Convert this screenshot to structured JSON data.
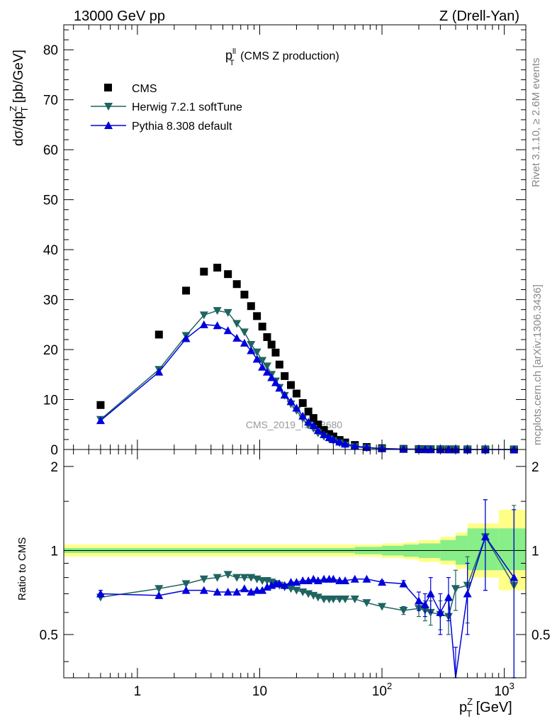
{
  "header": {
    "left": "13000 GeV pp",
    "right": "Z (Drell-Yan)"
  },
  "side_texts": {
    "rivet": "Rivet 3.1.10, ≥ 2.6M events",
    "mcplots": "mcplots.cern.ch [arXiv:1306.3436]"
  },
  "watermark": "CMS_2019_I1753680",
  "colors": {
    "cms": "#000000",
    "herwig": "#1f6460",
    "pythia": "#0000dd",
    "band_outer": "#ffff88",
    "band_inner": "#88ee88"
  },
  "chart_data": [
    {
      "type": "scatter",
      "panel": "main",
      "title": "p_T^ll (CMS Z production)",
      "title_parts": {
        "main": "p",
        "sup": "ll",
        "sub": "T",
        "rest": " (CMS Z production)"
      },
      "ylabel": "dσ/dp_T^Z [pb/GeV]",
      "ylabel_parts": {
        "pre": "dσ/dp",
        "sup": "Z",
        "sub": "T",
        "post": " [pb/GeV]"
      },
      "xscale": "log",
      "xlim": [
        0.25,
        1500
      ],
      "ylim": [
        0,
        85
      ],
      "yticks": [
        0,
        10,
        20,
        30,
        40,
        50,
        60,
        70,
        80
      ],
      "legend_position": "top-left",
      "series": [
        {
          "name": "CMS",
          "marker": "square",
          "x": [
            0.5,
            1.5,
            2.5,
            3.5,
            4.5,
            5.5,
            6.5,
            7.5,
            8.5,
            9.5,
            10.5,
            11.5,
            12.5,
            13.5,
            14.5,
            16,
            18,
            20,
            22.5,
            25,
            27.5,
            30,
            33.5,
            37,
            40,
            45,
            50,
            60,
            75,
            100,
            150,
            200,
            225,
            250,
            300,
            350,
            400,
            500,
            700,
            1200
          ],
          "y": [
            8.9,
            23.0,
            31.8,
            35.6,
            36.4,
            35.1,
            33.1,
            31.0,
            28.7,
            26.7,
            24.6,
            22.5,
            21.0,
            19.4,
            17.0,
            14.7,
            12.9,
            11.2,
            9.3,
            7.6,
            6.3,
            5.0,
            3.9,
            3.1,
            2.6,
            1.9,
            1.4,
            0.9,
            0.5,
            0.25,
            0.12,
            0.06,
            0.05,
            0.04,
            0.03,
            0.02,
            0.015,
            0.008,
            0.004,
            0.001
          ]
        },
        {
          "name": "Herwig 7.2.1 softTune",
          "marker": "triangle-down",
          "x": [
            0.5,
            1.5,
            2.5,
            3.5,
            4.5,
            5.5,
            6.5,
            7.5,
            8.5,
            9.5,
            10.5,
            11.5,
            12.5,
            13.5,
            14.5,
            16,
            18,
            20,
            22.5,
            25,
            27.5,
            30,
            33.5,
            37,
            40,
            45,
            50,
            60,
            75,
            100,
            150,
            200,
            225,
            250,
            300,
            350,
            400,
            500,
            700,
            1200
          ],
          "y": [
            6.0,
            16.0,
            22.8,
            26.9,
            27.8,
            27.4,
            25.2,
            23.5,
            21.0,
            19.5,
            17.8,
            16.7,
            15.0,
            13.7,
            12.4,
            10.8,
            9.1,
            7.8,
            6.2,
            4.9,
            4.2,
            3.3,
            2.6,
            2.1,
            1.7,
            1.3,
            0.9,
            0.55,
            0.32,
            0.16,
            0.08,
            0.04,
            0.03,
            0.02,
            0.015,
            0.01,
            0.008,
            0.005,
            0.003,
            0.001
          ]
        },
        {
          "name": "Pythia 8.308 default",
          "marker": "triangle-up",
          "x": [
            0.5,
            1.5,
            2.5,
            3.5,
            4.5,
            5.5,
            6.5,
            7.5,
            8.5,
            9.5,
            10.5,
            11.5,
            12.5,
            13.5,
            14.5,
            16,
            18,
            20,
            22.5,
            25,
            27.5,
            30,
            33.5,
            37,
            40,
            45,
            50,
            60,
            75,
            100,
            150,
            200,
            225,
            250,
            300,
            350,
            400,
            500,
            700,
            1200
          ],
          "y": [
            5.8,
            15.5,
            22.2,
            25.0,
            24.8,
            23.8,
            22.3,
            21.3,
            19.8,
            18.1,
            16.5,
            15.5,
            14.4,
            13.4,
            12.3,
            10.9,
            9.6,
            8.3,
            6.7,
            5.5,
            4.8,
            3.8,
            3.0,
            2.4,
            2.0,
            1.5,
            1.1,
            0.7,
            0.4,
            0.2,
            0.09,
            0.045,
            0.04,
            0.03,
            0.02,
            0.013,
            0.008,
            0.004,
            0.003,
            0.001
          ]
        }
      ]
    },
    {
      "type": "line",
      "panel": "ratio",
      "ylabel": "Ratio to CMS",
      "xlabel": "p_T^Z [GeV]",
      "xlabel_parts": {
        "pre": "p",
        "sup": "Z",
        "sub": "T",
        "post": " [GeV]"
      },
      "xscale": "log",
      "xlim": [
        0.25,
        1500
      ],
      "ylim": [
        0.35,
        2.3
      ],
      "yticks": [
        0.5,
        1,
        2
      ],
      "xticks": [
        1,
        10,
        100,
        1000
      ],
      "xtick_labels": [
        {
          "base": "1",
          "exp": ""
        },
        {
          "base": "10",
          "exp": ""
        },
        {
          "base": "10",
          "exp": "2"
        },
        {
          "base": "10",
          "exp": "3"
        }
      ],
      "band_edges": [
        0.25,
        60,
        100,
        150,
        200,
        300,
        400,
        500,
        900,
        1500
      ],
      "band_outer": [
        [
          0.95,
          1.05
        ],
        [
          0.95,
          1.05
        ],
        [
          0.94,
          1.06
        ],
        [
          0.93,
          1.07
        ],
        [
          0.91,
          1.09
        ],
        [
          0.89,
          1.12
        ],
        [
          0.86,
          1.16
        ],
        [
          0.8,
          1.25
        ],
        [
          0.72,
          1.4
        ]
      ],
      "band_inner": [
        [
          0.98,
          1.02
        ],
        [
          0.97,
          1.03
        ],
        [
          0.96,
          1.04
        ],
        [
          0.95,
          1.05
        ],
        [
          0.94,
          1.06
        ],
        [
          0.92,
          1.09
        ],
        [
          0.89,
          1.13
        ],
        [
          0.85,
          1.2
        ],
        [
          0.85,
          1.2
        ]
      ],
      "series": [
        {
          "name": "Herwig 7.2.1 softTune",
          "x": [
            0.5,
            1.5,
            2.5,
            3.5,
            4.5,
            5.5,
            6.5,
            7.5,
            8.5,
            9.5,
            10.5,
            11.5,
            12.5,
            13.5,
            14.5,
            16,
            18,
            20,
            22.5,
            25,
            27.5,
            30,
            33.5,
            37,
            40,
            45,
            50,
            60,
            75,
            100,
            150,
            200,
            225,
            250,
            300,
            350,
            400,
            500,
            700,
            1200
          ],
          "y": [
            0.68,
            0.73,
            0.76,
            0.79,
            0.8,
            0.82,
            0.8,
            0.8,
            0.8,
            0.79,
            0.78,
            0.78,
            0.77,
            0.76,
            0.75,
            0.74,
            0.73,
            0.72,
            0.71,
            0.7,
            0.69,
            0.68,
            0.67,
            0.67,
            0.67,
            0.67,
            0.67,
            0.67,
            0.65,
            0.63,
            0.61,
            0.62,
            0.61,
            0.6,
            0.59,
            0.58,
            0.73,
            0.75,
            1.12,
            0.75
          ],
          "yerr": [
            0,
            0,
            0,
            0,
            0,
            0,
            0,
            0,
            0,
            0,
            0,
            0,
            0,
            0,
            0,
            0,
            0,
            0,
            0,
            0,
            0,
            0,
            0,
            0,
            0,
            0,
            0,
            0,
            0,
            0,
            0.02,
            0.04,
            0.05,
            0.06,
            0.07,
            0.08,
            0.12,
            0.2,
            0.4,
            0.7
          ]
        },
        {
          "name": "Pythia 8.308 default",
          "x": [
            0.5,
            1.5,
            2.5,
            3.5,
            4.5,
            5.5,
            6.5,
            7.5,
            8.5,
            9.5,
            10.5,
            11.5,
            12.5,
            13.5,
            14.5,
            16,
            18,
            20,
            22.5,
            25,
            27.5,
            30,
            33.5,
            37,
            40,
            45,
            50,
            60,
            75,
            100,
            150,
            200,
            225,
            250,
            300,
            350,
            400,
            500,
            700,
            1200
          ],
          "y": [
            0.7,
            0.69,
            0.72,
            0.72,
            0.71,
            0.71,
            0.71,
            0.73,
            0.71,
            0.72,
            0.72,
            0.74,
            0.75,
            0.76,
            0.76,
            0.75,
            0.77,
            0.77,
            0.78,
            0.78,
            0.79,
            0.78,
            0.79,
            0.79,
            0.79,
            0.78,
            0.78,
            0.79,
            0.79,
            0.77,
            0.76,
            0.66,
            0.64,
            0.7,
            0.6,
            0.68,
            0.3,
            0.7,
            1.12,
            0.8
          ],
          "yerr": [
            0.02,
            0,
            0,
            0,
            0,
            0,
            0,
            0,
            0,
            0,
            0,
            0,
            0,
            0,
            0,
            0,
            0,
            0,
            0,
            0,
            0,
            0,
            0,
            0,
            0,
            0,
            0,
            0,
            0,
            0.01,
            0.02,
            0.05,
            0.06,
            0.1,
            0.1,
            0.12,
            0.15,
            0.2,
            0.4,
            0.6
          ]
        }
      ]
    }
  ]
}
